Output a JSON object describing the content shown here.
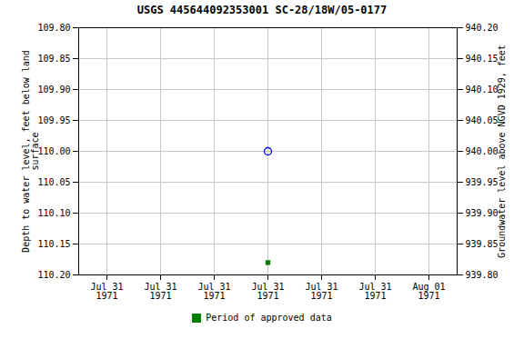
{
  "chart_data": {
    "type": "scatter",
    "title": "USGS 445644092353001 SC-28/18W/05-0177",
    "categories": [
      "Jul 31\n1971",
      "Jul 31\n1971",
      "Jul 31\n1971",
      "Jul 31\n1971",
      "Jul 31\n1971",
      "Jul 31\n1971",
      "Aug 01\n1971"
    ],
    "ylabel": "Depth to water level, feet below land\nsurface",
    "y2label": "Groundwater level above NGVD 1929, feet",
    "ylim": [
      110.2,
      109.8
    ],
    "yticks": [
      {
        "value": 109.8,
        "label": "109.80"
      },
      {
        "value": 109.85,
        "label": "109.85"
      },
      {
        "value": 109.9,
        "label": "109.90"
      },
      {
        "value": 109.95,
        "label": "109.95"
      },
      {
        "value": 110.0,
        "label": "110.00"
      },
      {
        "value": 110.05,
        "label": "110.05"
      },
      {
        "value": 110.1,
        "label": "110.10"
      },
      {
        "value": 110.15,
        "label": "110.15"
      },
      {
        "value": 110.2,
        "label": "110.20"
      }
    ],
    "y2lim": [
      939.8,
      940.2
    ],
    "y2ticks": [
      {
        "value": 940.2,
        "label": "940.20"
      },
      {
        "value": 940.15,
        "label": "940.15"
      },
      {
        "value": 940.1,
        "label": "940.10"
      },
      {
        "value": 940.05,
        "label": "940.05"
      },
      {
        "value": 940.0,
        "label": "940.00"
      },
      {
        "value": 939.95,
        "label": "939.95"
      },
      {
        "value": 939.9,
        "label": "939.90"
      },
      {
        "value": 939.85,
        "label": "939.85"
      },
      {
        "value": 939.8,
        "label": "939.80"
      }
    ],
    "series": [
      {
        "color": "blue",
        "marker": "circle",
        "values": [
          null,
          null,
          null,
          110.0,
          null,
          null,
          null
        ]
      },
      {
        "name": "Period of approved data",
        "color": "#008000",
        "marker": "square",
        "values": [
          null,
          null,
          null,
          110.18,
          null,
          null,
          null
        ]
      }
    ],
    "grid": true,
    "legend": "bottom"
  }
}
